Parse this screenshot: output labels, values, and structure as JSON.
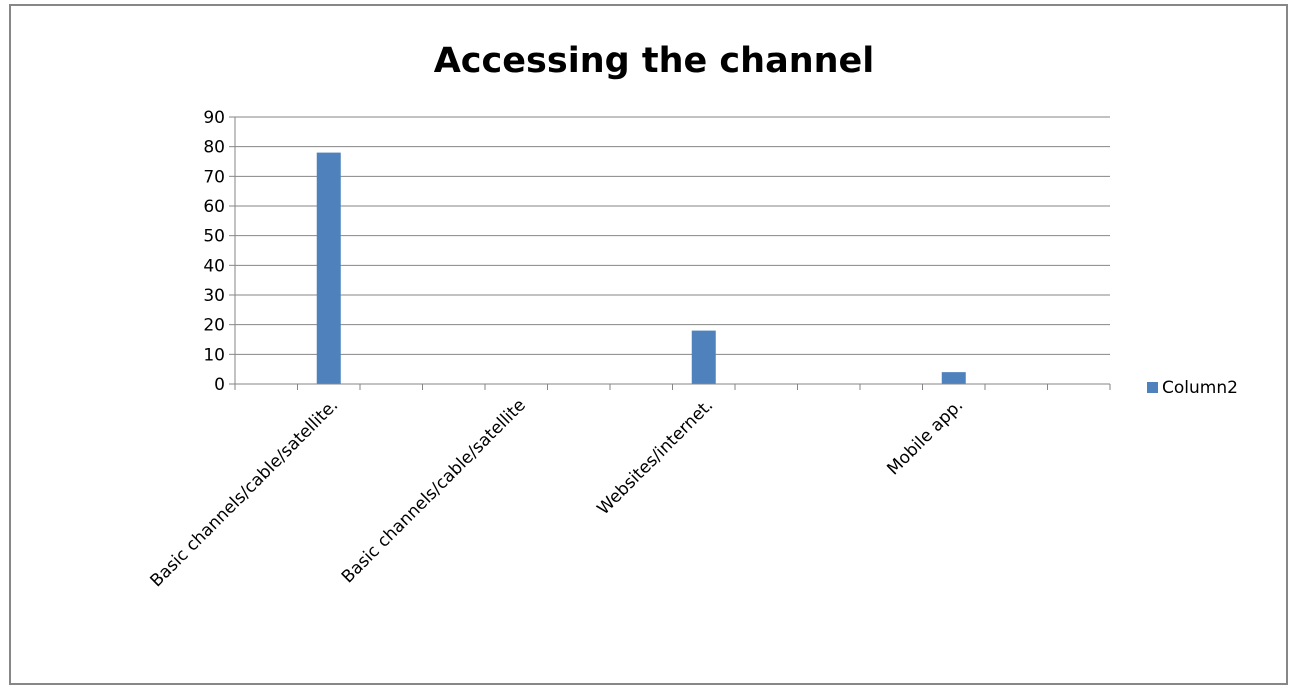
{
  "chart_data": {
    "type": "bar",
    "title": "Accessing the channel",
    "xlabel": "",
    "ylabel": "",
    "categories": [
      "Basic channels/cable/satellite.",
      "Basic channels/cable/satellite",
      "Websites/internet.",
      "Mobile app."
    ],
    "series": [
      {
        "name": "Column2",
        "color": "#4F81BD",
        "values": [
          78,
          0,
          18,
          4
        ]
      }
    ],
    "ylim": [
      0,
      90
    ],
    "yticks": [
      0,
      10,
      20,
      30,
      40,
      50,
      60,
      70,
      80,
      90
    ],
    "grid": true,
    "legend": "right"
  }
}
